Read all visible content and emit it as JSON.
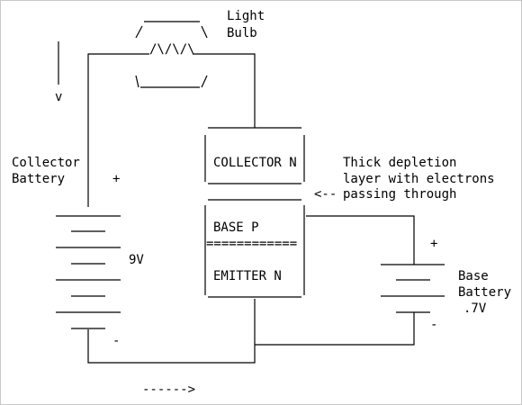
{
  "diagram": {
    "light_bulb": {
      "line1": "Light",
      "line2": "Bulb"
    },
    "filament": "/\\/\\/\\",
    "collector_label": "COLLECTOR N",
    "base_label": "BASE      P",
    "base_separator": "============",
    "emitter_label": "EMITTER  N",
    "collector_battery": {
      "line1": "Collector",
      "line2": "Battery",
      "voltage": "9V",
      "plus": "+",
      "minus": "-"
    },
    "base_battery": {
      "line1": "Base",
      "line2": "Battery",
      "voltage": ".7V",
      "plus": "+",
      "minus": "-"
    },
    "depletion_note": {
      "line1": "Thick depletion",
      "line2": "layer with electrons",
      "line3": "passing through",
      "arrow": "<--"
    },
    "flow_down_arrow": "v",
    "flow_right_arrow": "------>"
  },
  "colors": {
    "lines": "#000000",
    "background": "#ffffff",
    "border": "#c8c8c8"
  }
}
